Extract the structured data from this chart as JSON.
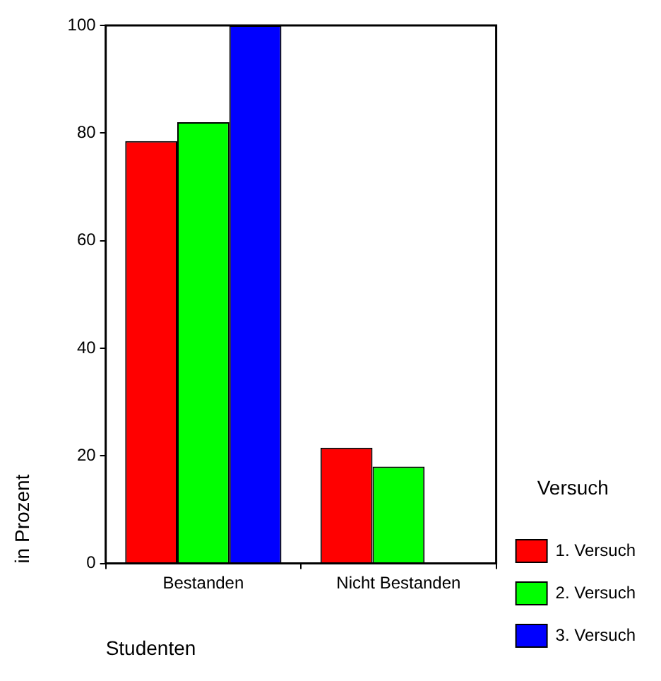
{
  "chart_data": {
    "type": "bar",
    "xlabel": "Studenten",
    "ylabel": "in Prozent",
    "legend_title": "Versuch",
    "categories": [
      "Bestanden",
      "Nicht Bestanden"
    ],
    "series": [
      {
        "name": "1. Versuch",
        "color": "#ff0000",
        "values": [
          78.5,
          21.5
        ]
      },
      {
        "name": "2. Versuch",
        "color": "#00ff00",
        "values": [
          82,
          18
        ]
      },
      {
        "name": "3. Versuch",
        "color": "#0000ff",
        "values": [
          100,
          0
        ]
      }
    ],
    "ylim": [
      0,
      100
    ],
    "yticks": [
      0,
      20,
      40,
      60,
      80,
      100
    ],
    "grid": false,
    "legend": "right"
  }
}
